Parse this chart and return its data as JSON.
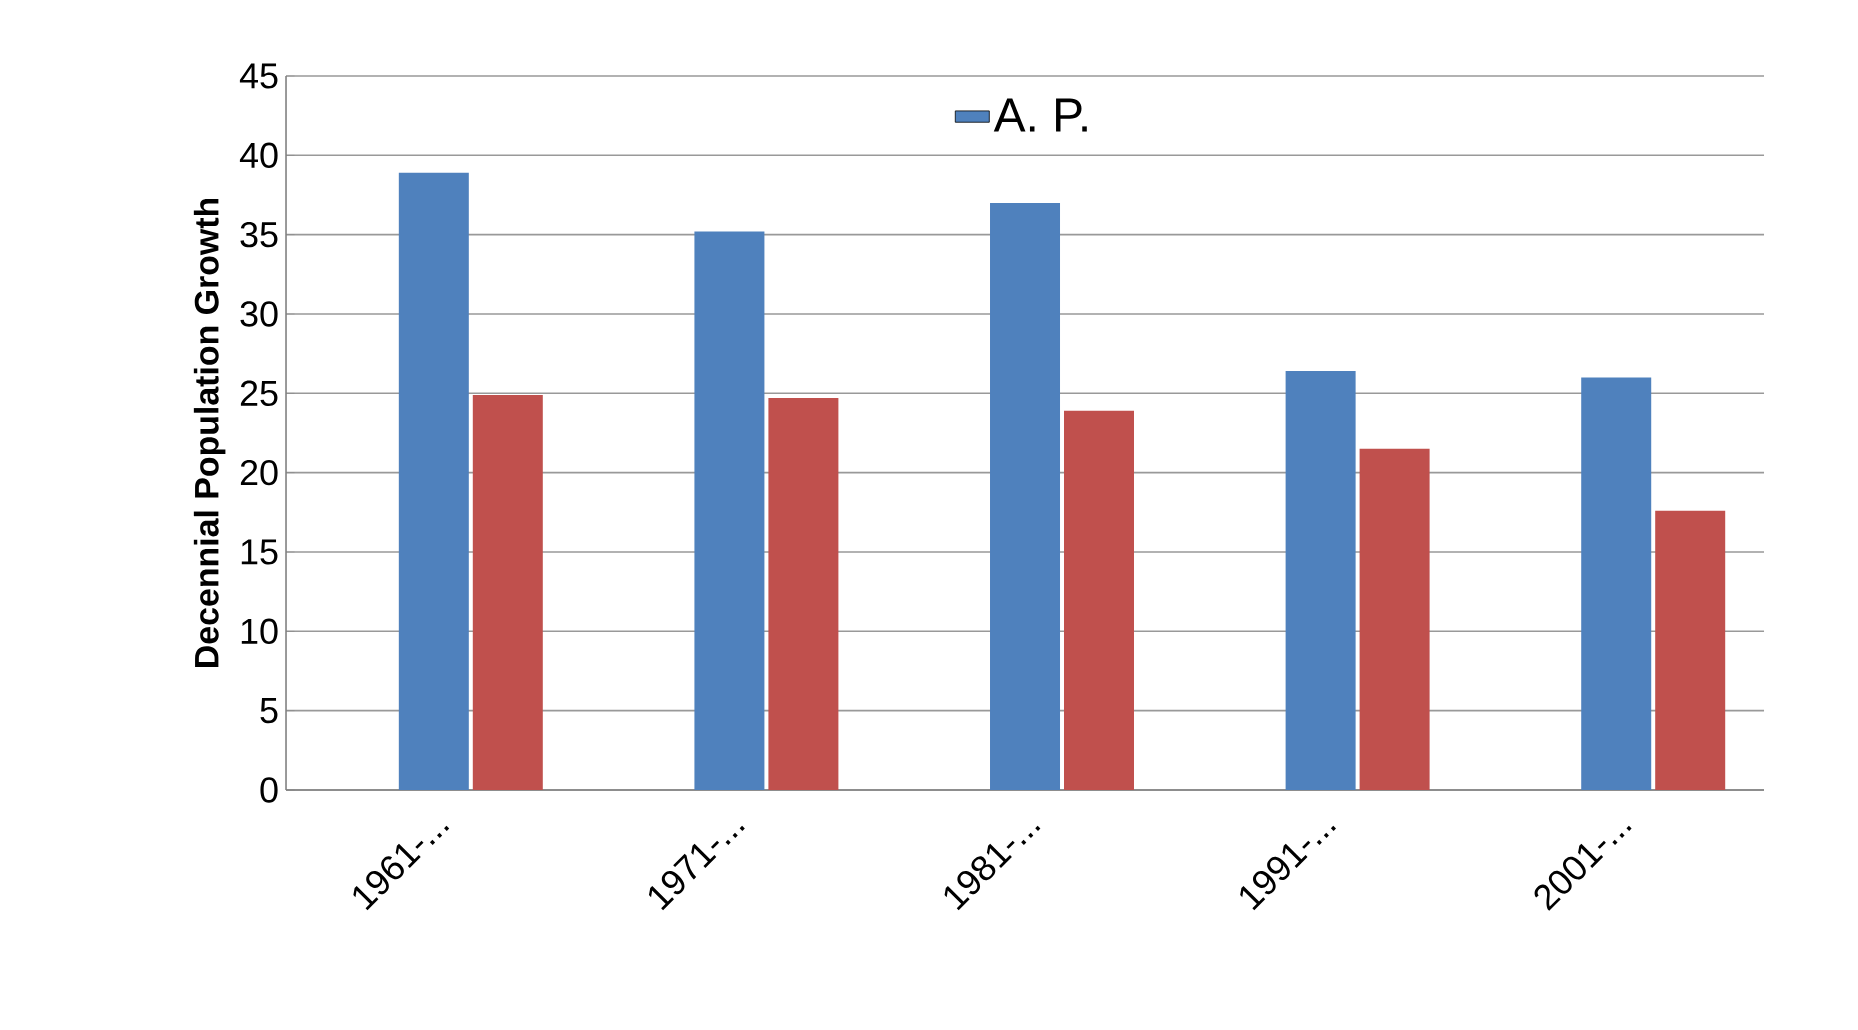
{
  "chart_data": {
    "type": "bar",
    "ylabel": "Decennial Population Growth",
    "categories": [
      "1961-...",
      "1971-...",
      "1981-...",
      "1991-...",
      "2001-..."
    ],
    "series": [
      {
        "name": "A. P.",
        "color": "#4f81bd",
        "values": [
          38.9,
          35.2,
          37.0,
          26.4,
          26.0
        ]
      },
      {
        "color": "#c0504d",
        "values": [
          24.9,
          24.7,
          23.9,
          21.5,
          17.6
        ]
      }
    ],
    "ylim": [
      0,
      45
    ],
    "yticks": [
      0,
      5,
      10,
      15,
      20,
      25,
      30,
      35,
      40,
      45
    ],
    "grid": "y",
    "legend": "top"
  }
}
